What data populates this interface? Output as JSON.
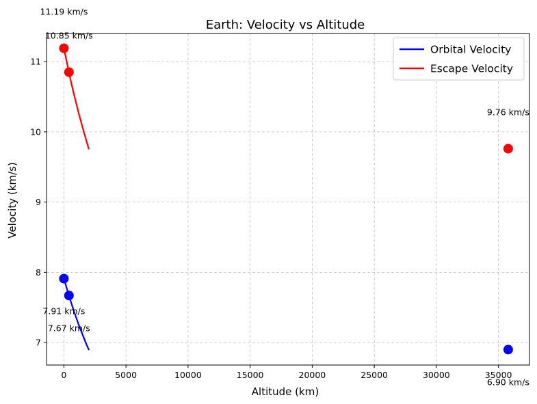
{
  "chart_data": {
    "type": "line",
    "title": "Earth: Velocity vs Altitude",
    "xlabel": "Altitude (km)",
    "ylabel": "Velocity (km/s)",
    "xlim": [
      -1400,
      37500
    ],
    "ylim": [
      6.68,
      11.4
    ],
    "xticks": [
      0,
      5000,
      10000,
      15000,
      20000,
      25000,
      30000,
      35000
    ],
    "xtick_labels": [
      "0",
      "5000",
      "10000",
      "15000",
      "20000",
      "25000",
      "30000",
      "35000"
    ],
    "yticks": [
      7,
      8,
      9,
      10,
      11
    ],
    "ytick_labels": [
      "7",
      "8",
      "9",
      "10",
      "11"
    ],
    "grid": true,
    "legend": "top-right",
    "series": [
      {
        "name": "Orbital Velocity",
        "color": "#0000ff",
        "x": [
          0,
          200,
          400,
          600,
          800,
          1000,
          1200,
          1400,
          1600,
          1800,
          2000
        ],
        "y": [
          7.91,
          7.79,
          7.67,
          7.56,
          7.45,
          7.35,
          7.25,
          7.16,
          7.07,
          6.98,
          6.9
        ]
      },
      {
        "name": "Escape Velocity",
        "color": "#ff0000",
        "x": [
          0,
          200,
          400,
          600,
          800,
          1000,
          1200,
          1400,
          1600,
          1800,
          2000
        ],
        "y": [
          11.19,
          11.02,
          10.85,
          10.69,
          10.54,
          10.4,
          10.26,
          10.13,
          10.0,
          9.88,
          9.76
        ]
      }
    ],
    "markers": [
      {
        "series": "Orbital Velocity",
        "color": "#0000ff",
        "x": 0,
        "y": 7.91,
        "label": "7.91 km/s",
        "label_side": "below"
      },
      {
        "series": "Orbital Velocity",
        "color": "#0000ff",
        "x": 408,
        "y": 7.67,
        "label": "7.67 km/s",
        "label_side": "below"
      },
      {
        "series": "Orbital Velocity",
        "color": "#0000ff",
        "x": 35786,
        "y": 6.9,
        "label": "6.90 km/s",
        "label_side": "below"
      },
      {
        "series": "Escape Velocity",
        "color": "#ff0000",
        "x": 0,
        "y": 11.19,
        "label": "11.19 km/s",
        "label_side": "above"
      },
      {
        "series": "Escape Velocity",
        "color": "#ff0000",
        "x": 408,
        "y": 10.85,
        "label": "10.85 km/s",
        "label_side": "above"
      },
      {
        "series": "Escape Velocity",
        "color": "#ff0000",
        "x": 35786,
        "y": 9.76,
        "label": "9.76 km/s",
        "label_side": "above"
      }
    ]
  }
}
